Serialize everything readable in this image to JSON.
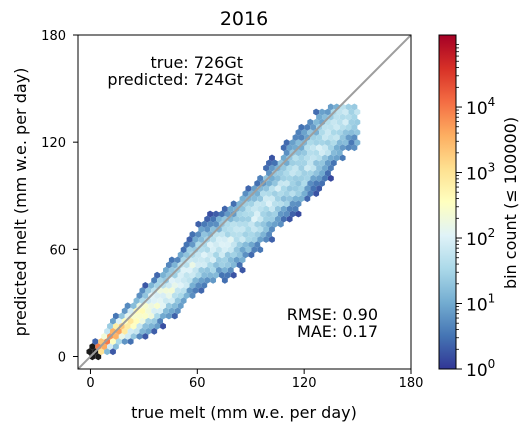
{
  "chart_data": {
    "type": "hexbin",
    "title": "2016",
    "xlabel": "true melt (mm w.e. per day)",
    "ylabel": "predicted melt (mm w.e. per day)",
    "xlim": [
      -7,
      180
    ],
    "ylim": [
      -7,
      180
    ],
    "xticks": [
      0,
      60,
      120,
      180
    ],
    "yticks": [
      0,
      60,
      120,
      180
    ],
    "x_tick_labels": [
      "0",
      "60",
      "120",
      "180"
    ],
    "y_tick_labels": [
      "0",
      "60",
      "120",
      "180"
    ],
    "reference_line": "y = x",
    "annotations": {
      "totals": [
        "true: 726Gt",
        "predicted: 724Gt"
      ],
      "metrics": [
        "RMSE: 0.90",
        "MAE: 0.17"
      ]
    },
    "colorbar": {
      "label": "bin count (≤ 100000)",
      "scale": "log",
      "range": [
        1,
        100000
      ],
      "tick_labels": [
        {
          "base": "10",
          "exp": "0",
          "value": 1
        },
        {
          "base": "10",
          "exp": "1",
          "value": 10
        },
        {
          "base": "10",
          "exp": "2",
          "value": 100
        },
        {
          "base": "10",
          "exp": "3",
          "value": 1000
        },
        {
          "base": "10",
          "exp": "4",
          "value": 10000
        }
      ],
      "colormap": "RdYlBu_r"
    },
    "density_ridge": [
      [
        0,
        0
      ],
      [
        10,
        10
      ],
      [
        20,
        18
      ],
      [
        35,
        29
      ],
      [
        50,
        42
      ],
      [
        60,
        55
      ],
      [
        75,
        63
      ],
      [
        90,
        75
      ],
      [
        105,
        92
      ],
      [
        120,
        108
      ],
      [
        135,
        124
      ],
      [
        145,
        136
      ]
    ]
  }
}
